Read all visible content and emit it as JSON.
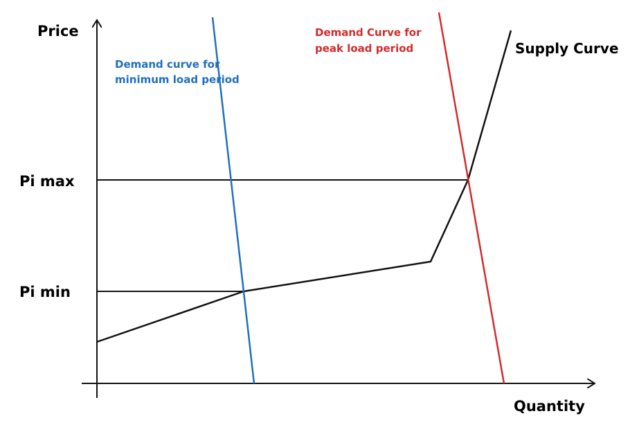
{
  "axes": {
    "y_label": "Price",
    "x_label": "Quantity"
  },
  "levels": {
    "pi_max": "Pi max",
    "pi_min": "Pi min"
  },
  "curves": {
    "demand_min": {
      "label_line1": "Demand curve for",
      "label_line2": "minimum load period",
      "color": "#1f6fbf"
    },
    "demand_peak": {
      "label_line1": "Demand Curve for",
      "label_line2": "peak load period",
      "color": "#d42a2a"
    },
    "supply": {
      "label": "Supply Curve",
      "color": "#111111"
    }
  }
}
